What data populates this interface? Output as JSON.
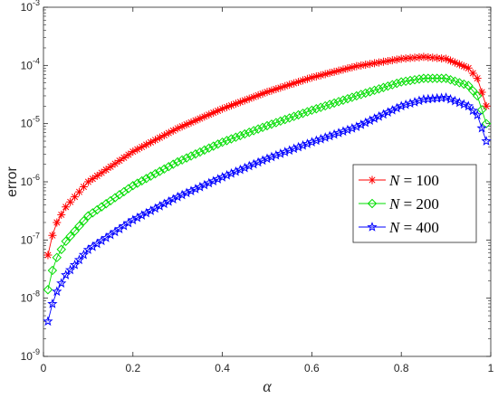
{
  "chart_data": {
    "type": "line",
    "xlabel": "α",
    "ylabel": "error",
    "xlim": [
      0,
      1
    ],
    "ylim_exponent": [
      -9,
      -3
    ],
    "yscale": "log",
    "x_ticks": [
      "0",
      "0.2",
      "0.4",
      "0.6",
      "0.8",
      "1"
    ],
    "y_ticks": [
      {
        "base": "10",
        "exp": "-9"
      },
      {
        "base": "10",
        "exp": "-8"
      },
      {
        "base": "10",
        "exp": "-7"
      },
      {
        "base": "10",
        "exp": "-6"
      },
      {
        "base": "10",
        "exp": "-5"
      },
      {
        "base": "10",
        "exp": "-4"
      },
      {
        "base": "10",
        "exp": "-3"
      }
    ],
    "grid": false,
    "legend_position": "right",
    "series": [
      {
        "name": "N = 100",
        "legend_var": "N",
        "legend_eq": " = 100",
        "color": "#ff0000",
        "marker": "asterisk",
        "x": [
          0.01,
          0.02,
          0.03,
          0.05,
          0.1,
          0.2,
          0.3,
          0.4,
          0.5,
          0.6,
          0.7,
          0.8,
          0.85,
          0.9,
          0.95,
          0.97,
          0.99
        ],
        "y": [
          5.5e-08,
          1.2e-07,
          2e-07,
          3.7e-07,
          1e-06,
          3.3e-06,
          8.3e-06,
          1.8e-05,
          3.5e-05,
          6.2e-05,
          9.7e-05,
          0.00013,
          0.00014,
          0.00013,
          9e-05,
          6e-05,
          2e-05
        ]
      },
      {
        "name": "N = 200",
        "legend_var": "N",
        "legend_eq": " = 200",
        "color": "#00dd00",
        "marker": "diamond",
        "x": [
          0.01,
          0.02,
          0.03,
          0.05,
          0.1,
          0.2,
          0.3,
          0.4,
          0.5,
          0.6,
          0.7,
          0.8,
          0.85,
          0.9,
          0.95,
          0.97,
          0.99
        ],
        "y": [
          1.4e-08,
          3e-08,
          5e-08,
          9.5e-08,
          2.6e-07,
          8.6e-07,
          2.2e-06,
          4.8e-06,
          9.2e-06,
          1.7e-05,
          3e-05,
          5.2e-05,
          6e-05,
          6e-05,
          4.5e-05,
          3e-05,
          1e-05
        ]
      },
      {
        "name": "N = 400",
        "legend_var": "N",
        "legend_eq": " = 400",
        "color": "#0000ff",
        "marker": "star",
        "x": [
          0.01,
          0.02,
          0.03,
          0.05,
          0.1,
          0.2,
          0.3,
          0.4,
          0.5,
          0.6,
          0.7,
          0.8,
          0.85,
          0.9,
          0.95,
          0.97,
          0.99
        ],
        "y": [
          4e-09,
          8e-09,
          1.3e-08,
          2.5e-08,
          6.8e-08,
          2.2e-07,
          5.5e-07,
          1.2e-06,
          2.5e-06,
          4.8e-06,
          8.8e-06,
          2e-05,
          2.6e-05,
          2.8e-05,
          2e-05,
          1.4e-05,
          5e-06
        ]
      }
    ]
  }
}
